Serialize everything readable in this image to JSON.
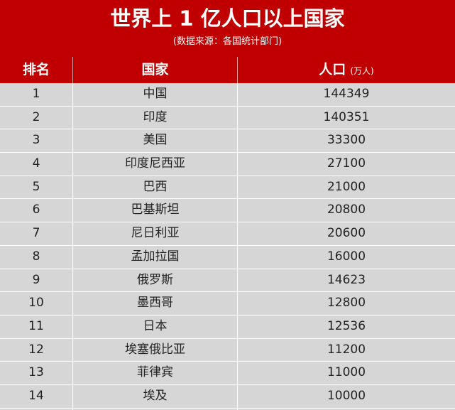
{
  "title": "世界上 1 亿人口以上国家",
  "subtitle": "(数据来源：各国统计部门)",
  "headers": {
    "rank": "排名",
    "country": "国家",
    "population": "人口",
    "population_unit": "(万人)"
  },
  "rows": [
    {
      "rank": "1",
      "country": "中国",
      "population": "144349"
    },
    {
      "rank": "2",
      "country": "印度",
      "population": "140351"
    },
    {
      "rank": "3",
      "country": "美国",
      "population": "33300"
    },
    {
      "rank": "4",
      "country": "印度尼西亚",
      "population": "27100"
    },
    {
      "rank": "5",
      "country": "巴西",
      "population": "21000"
    },
    {
      "rank": "6",
      "country": "巴基斯坦",
      "population": "20800"
    },
    {
      "rank": "7",
      "country": "尼日利亚",
      "population": "20600"
    },
    {
      "rank": "8",
      "country": "孟加拉国",
      "population": "16000"
    },
    {
      "rank": "9",
      "country": "俄罗斯",
      "population": "14623"
    },
    {
      "rank": "10",
      "country": "墨西哥",
      "population": "12800"
    },
    {
      "rank": "11",
      "country": "日本",
      "population": "12536"
    },
    {
      "rank": "12",
      "country": "埃塞俄比亚",
      "population": "11200"
    },
    {
      "rank": "13",
      "country": "菲律宾",
      "population": "11000"
    },
    {
      "rank": "14",
      "country": "埃及",
      "population": "10000"
    }
  ],
  "colors": {
    "header_red": "#c00000",
    "row_gray": "#d6d6d6",
    "header_text": "#ffffff"
  }
}
